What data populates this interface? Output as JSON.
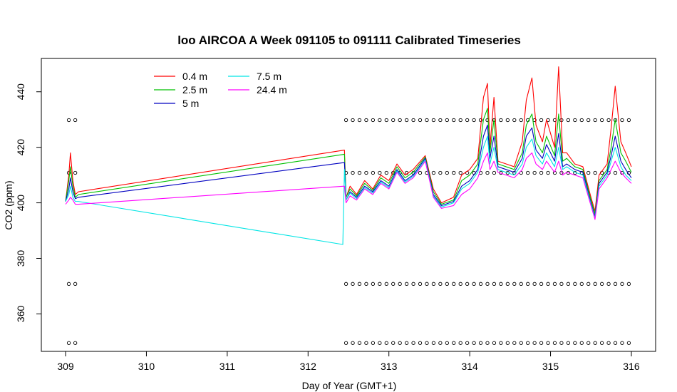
{
  "chart_data": {
    "type": "line",
    "title": "loo AIRCOA A  Week 091105 to 091111  Calibrated Timeseries",
    "xlabel": "Day of Year (GMT+1)",
    "ylabel": "CO2 (ppm)",
    "xlim": [
      308.7,
      316.3
    ],
    "ylim": [
      346.5,
      452.0
    ],
    "x_ticks": [
      309,
      310,
      311,
      312,
      313,
      314,
      315,
      316
    ],
    "y_ticks": [
      360,
      380,
      400,
      420,
      440
    ],
    "legend_placement": "top-left",
    "grid": false,
    "series": [
      {
        "name": "0.4 m",
        "color": "#ff0000",
        "points": [
          [
            309.0,
            400.5
          ],
          [
            309.04,
            410
          ],
          [
            309.06,
            418
          ],
          [
            309.09,
            408
          ],
          [
            309.12,
            403
          ],
          [
            309.16,
            404
          ],
          [
            312.45,
            419
          ],
          [
            312.47,
            402
          ],
          [
            312.52,
            406
          ],
          [
            312.6,
            403
          ],
          [
            312.7,
            408
          ],
          [
            312.8,
            405
          ],
          [
            312.9,
            410
          ],
          [
            313.0,
            408
          ],
          [
            313.1,
            414
          ],
          [
            313.2,
            410
          ],
          [
            313.3,
            412
          ],
          [
            313.45,
            417
          ],
          [
            313.55,
            405
          ],
          [
            313.65,
            400
          ],
          [
            313.8,
            402
          ],
          [
            313.9,
            410
          ],
          [
            314.0,
            412
          ],
          [
            314.1,
            416
          ],
          [
            314.17,
            438
          ],
          [
            314.22,
            443
          ],
          [
            314.25,
            420
          ],
          [
            314.3,
            438
          ],
          [
            314.35,
            415
          ],
          [
            314.45,
            414
          ],
          [
            314.55,
            413
          ],
          [
            314.65,
            422
          ],
          [
            314.7,
            437
          ],
          [
            314.77,
            445
          ],
          [
            314.82,
            428
          ],
          [
            314.9,
            422
          ],
          [
            314.95,
            430
          ],
          [
            315.05,
            420
          ],
          [
            315.1,
            449
          ],
          [
            315.15,
            418
          ],
          [
            315.2,
            418
          ],
          [
            315.3,
            414
          ],
          [
            315.4,
            413
          ],
          [
            315.5,
            402
          ],
          [
            315.55,
            397
          ],
          [
            315.6,
            410
          ],
          [
            315.7,
            414
          ],
          [
            315.75,
            427
          ],
          [
            315.8,
            442
          ],
          [
            315.87,
            422
          ],
          [
            315.93,
            418
          ],
          [
            316.0,
            413
          ]
        ]
      },
      {
        "name": "2.5 m",
        "color": "#00c000",
        "points": [
          [
            309.0,
            400.5
          ],
          [
            309.04,
            408
          ],
          [
            309.06,
            413
          ],
          [
            309.09,
            406
          ],
          [
            309.12,
            402
          ],
          [
            309.16,
            403
          ],
          [
            312.45,
            417.5
          ],
          [
            312.47,
            402
          ],
          [
            312.52,
            405
          ],
          [
            312.6,
            402.5
          ],
          [
            312.7,
            407
          ],
          [
            312.8,
            404.5
          ],
          [
            312.9,
            409
          ],
          [
            313.0,
            407
          ],
          [
            313.1,
            413
          ],
          [
            313.2,
            409
          ],
          [
            313.3,
            411
          ],
          [
            313.45,
            416.5
          ],
          [
            313.55,
            404
          ],
          [
            313.65,
            399.5
          ],
          [
            313.8,
            401
          ],
          [
            313.9,
            408
          ],
          [
            314.0,
            410
          ],
          [
            314.1,
            414
          ],
          [
            314.17,
            430
          ],
          [
            314.22,
            434
          ],
          [
            314.25,
            418
          ],
          [
            314.3,
            430
          ],
          [
            314.35,
            414
          ],
          [
            314.45,
            413
          ],
          [
            314.55,
            412
          ],
          [
            314.65,
            418
          ],
          [
            314.7,
            428
          ],
          [
            314.77,
            432
          ],
          [
            314.82,
            422
          ],
          [
            314.9,
            418
          ],
          [
            314.95,
            424
          ],
          [
            315.05,
            417
          ],
          [
            315.1,
            432
          ],
          [
            315.15,
            415
          ],
          [
            315.2,
            416
          ],
          [
            315.3,
            413
          ],
          [
            315.4,
            412
          ],
          [
            315.5,
            401
          ],
          [
            315.55,
            396
          ],
          [
            315.6,
            408
          ],
          [
            315.7,
            412
          ],
          [
            315.75,
            420
          ],
          [
            315.8,
            430
          ],
          [
            315.87,
            418
          ],
          [
            315.93,
            415
          ],
          [
            316.0,
            411
          ]
        ]
      },
      {
        "name": "5 m",
        "color": "#0000c0",
        "points": [
          [
            309.0,
            400.5
          ],
          [
            309.04,
            405
          ],
          [
            309.06,
            409
          ],
          [
            309.09,
            404
          ],
          [
            309.12,
            401.5
          ],
          [
            309.16,
            402
          ],
          [
            312.45,
            414.5
          ],
          [
            312.47,
            401
          ],
          [
            312.52,
            404
          ],
          [
            312.6,
            402
          ],
          [
            312.7,
            406
          ],
          [
            312.8,
            404
          ],
          [
            312.9,
            408
          ],
          [
            313.0,
            406
          ],
          [
            313.1,
            412
          ],
          [
            313.2,
            408
          ],
          [
            313.3,
            410
          ],
          [
            313.45,
            416
          ],
          [
            313.55,
            403
          ],
          [
            313.65,
            399
          ],
          [
            313.8,
            400.5
          ],
          [
            313.9,
            406
          ],
          [
            314.0,
            408
          ],
          [
            314.1,
            412
          ],
          [
            314.17,
            424
          ],
          [
            314.22,
            428
          ],
          [
            314.25,
            416
          ],
          [
            314.3,
            424
          ],
          [
            314.35,
            413
          ],
          [
            314.45,
            412
          ],
          [
            314.55,
            411
          ],
          [
            314.65,
            416
          ],
          [
            314.7,
            424
          ],
          [
            314.77,
            427
          ],
          [
            314.82,
            419
          ],
          [
            314.9,
            416
          ],
          [
            314.95,
            421
          ],
          [
            315.05,
            415
          ],
          [
            315.1,
            425
          ],
          [
            315.15,
            413
          ],
          [
            315.2,
            414
          ],
          [
            315.3,
            412
          ],
          [
            315.4,
            411
          ],
          [
            315.5,
            400
          ],
          [
            315.55,
            395
          ],
          [
            315.6,
            407
          ],
          [
            315.7,
            411
          ],
          [
            315.75,
            417
          ],
          [
            315.8,
            424
          ],
          [
            315.87,
            415
          ],
          [
            315.93,
            412
          ],
          [
            316.0,
            409
          ]
        ]
      },
      {
        "name": "7.5 m",
        "color": "#00e5e5",
        "points": [
          [
            309.0,
            400.5
          ],
          [
            309.04,
            403
          ],
          [
            309.06,
            406
          ],
          [
            309.09,
            402
          ],
          [
            309.12,
            400.5
          ],
          [
            309.16,
            400.5
          ],
          [
            312.43,
            385
          ],
          [
            312.45,
            412
          ],
          [
            312.47,
            401
          ],
          [
            312.52,
            403.5
          ],
          [
            312.6,
            401.5
          ],
          [
            312.7,
            405.5
          ],
          [
            312.8,
            403.5
          ],
          [
            312.9,
            407.5
          ],
          [
            313.0,
            405.5
          ],
          [
            313.1,
            411.5
          ],
          [
            313.2,
            407.5
          ],
          [
            313.3,
            409.5
          ],
          [
            313.45,
            415.5
          ],
          [
            313.55,
            402.5
          ],
          [
            313.65,
            398.5
          ],
          [
            313.8,
            400
          ],
          [
            313.9,
            405
          ],
          [
            314.0,
            407
          ],
          [
            314.1,
            411
          ],
          [
            314.17,
            420
          ],
          [
            314.22,
            424
          ],
          [
            314.25,
            414
          ],
          [
            314.3,
            420
          ],
          [
            314.35,
            412
          ],
          [
            314.45,
            411
          ],
          [
            314.55,
            410
          ],
          [
            314.65,
            414
          ],
          [
            314.7,
            420
          ],
          [
            314.77,
            423
          ],
          [
            314.82,
            417
          ],
          [
            314.9,
            414
          ],
          [
            314.95,
            418
          ],
          [
            315.05,
            413
          ],
          [
            315.1,
            420
          ],
          [
            315.15,
            412
          ],
          [
            315.2,
            413
          ],
          [
            315.3,
            411
          ],
          [
            315.4,
            410
          ],
          [
            315.5,
            399.5
          ],
          [
            315.55,
            394.5
          ],
          [
            315.6,
            406
          ],
          [
            315.7,
            410
          ],
          [
            315.75,
            415
          ],
          [
            315.8,
            420
          ],
          [
            315.87,
            413
          ],
          [
            315.93,
            410
          ],
          [
            316.0,
            408
          ]
        ]
      },
      {
        "name": "24.4 m",
        "color": "#ff00ff",
        "points": [
          [
            309.0,
            399.5
          ],
          [
            309.04,
            401
          ],
          [
            309.06,
            402
          ],
          [
            309.09,
            401
          ],
          [
            309.12,
            399.5
          ],
          [
            309.16,
            399.5
          ],
          [
            312.45,
            406
          ],
          [
            312.47,
            400
          ],
          [
            312.52,
            402.5
          ],
          [
            312.6,
            401
          ],
          [
            312.7,
            405
          ],
          [
            312.8,
            403
          ],
          [
            312.9,
            407
          ],
          [
            313.0,
            405
          ],
          [
            313.1,
            411
          ],
          [
            313.2,
            407
          ],
          [
            313.3,
            409
          ],
          [
            313.45,
            415
          ],
          [
            313.55,
            402
          ],
          [
            313.65,
            398
          ],
          [
            313.8,
            399
          ],
          [
            313.9,
            403
          ],
          [
            314.0,
            405
          ],
          [
            314.1,
            409
          ],
          [
            314.17,
            415
          ],
          [
            314.22,
            418
          ],
          [
            314.25,
            412
          ],
          [
            314.3,
            415
          ],
          [
            314.35,
            411
          ],
          [
            314.45,
            410
          ],
          [
            314.55,
            409
          ],
          [
            314.65,
            412
          ],
          [
            314.7,
            416
          ],
          [
            314.77,
            418
          ],
          [
            314.82,
            414
          ],
          [
            314.9,
            412
          ],
          [
            314.95,
            415
          ],
          [
            315.05,
            411
          ],
          [
            315.1,
            415
          ],
          [
            315.15,
            410
          ],
          [
            315.2,
            411
          ],
          [
            315.3,
            410
          ],
          [
            315.4,
            409
          ],
          [
            315.5,
            399
          ],
          [
            315.55,
            394
          ],
          [
            315.6,
            405
          ],
          [
            315.7,
            409
          ],
          [
            315.75,
            412
          ],
          [
            315.8,
            415
          ],
          [
            315.87,
            411
          ],
          [
            315.93,
            409
          ],
          [
            316.0,
            407
          ]
        ]
      }
    ],
    "flag_markers": {
      "levels": [
        349.5,
        370.8,
        410.8,
        429.8
      ],
      "x_first": [
        309.04,
        309.12
      ],
      "x_start": 312.47,
      "x_end": 316.0,
      "x_step": 0.0833
    }
  }
}
